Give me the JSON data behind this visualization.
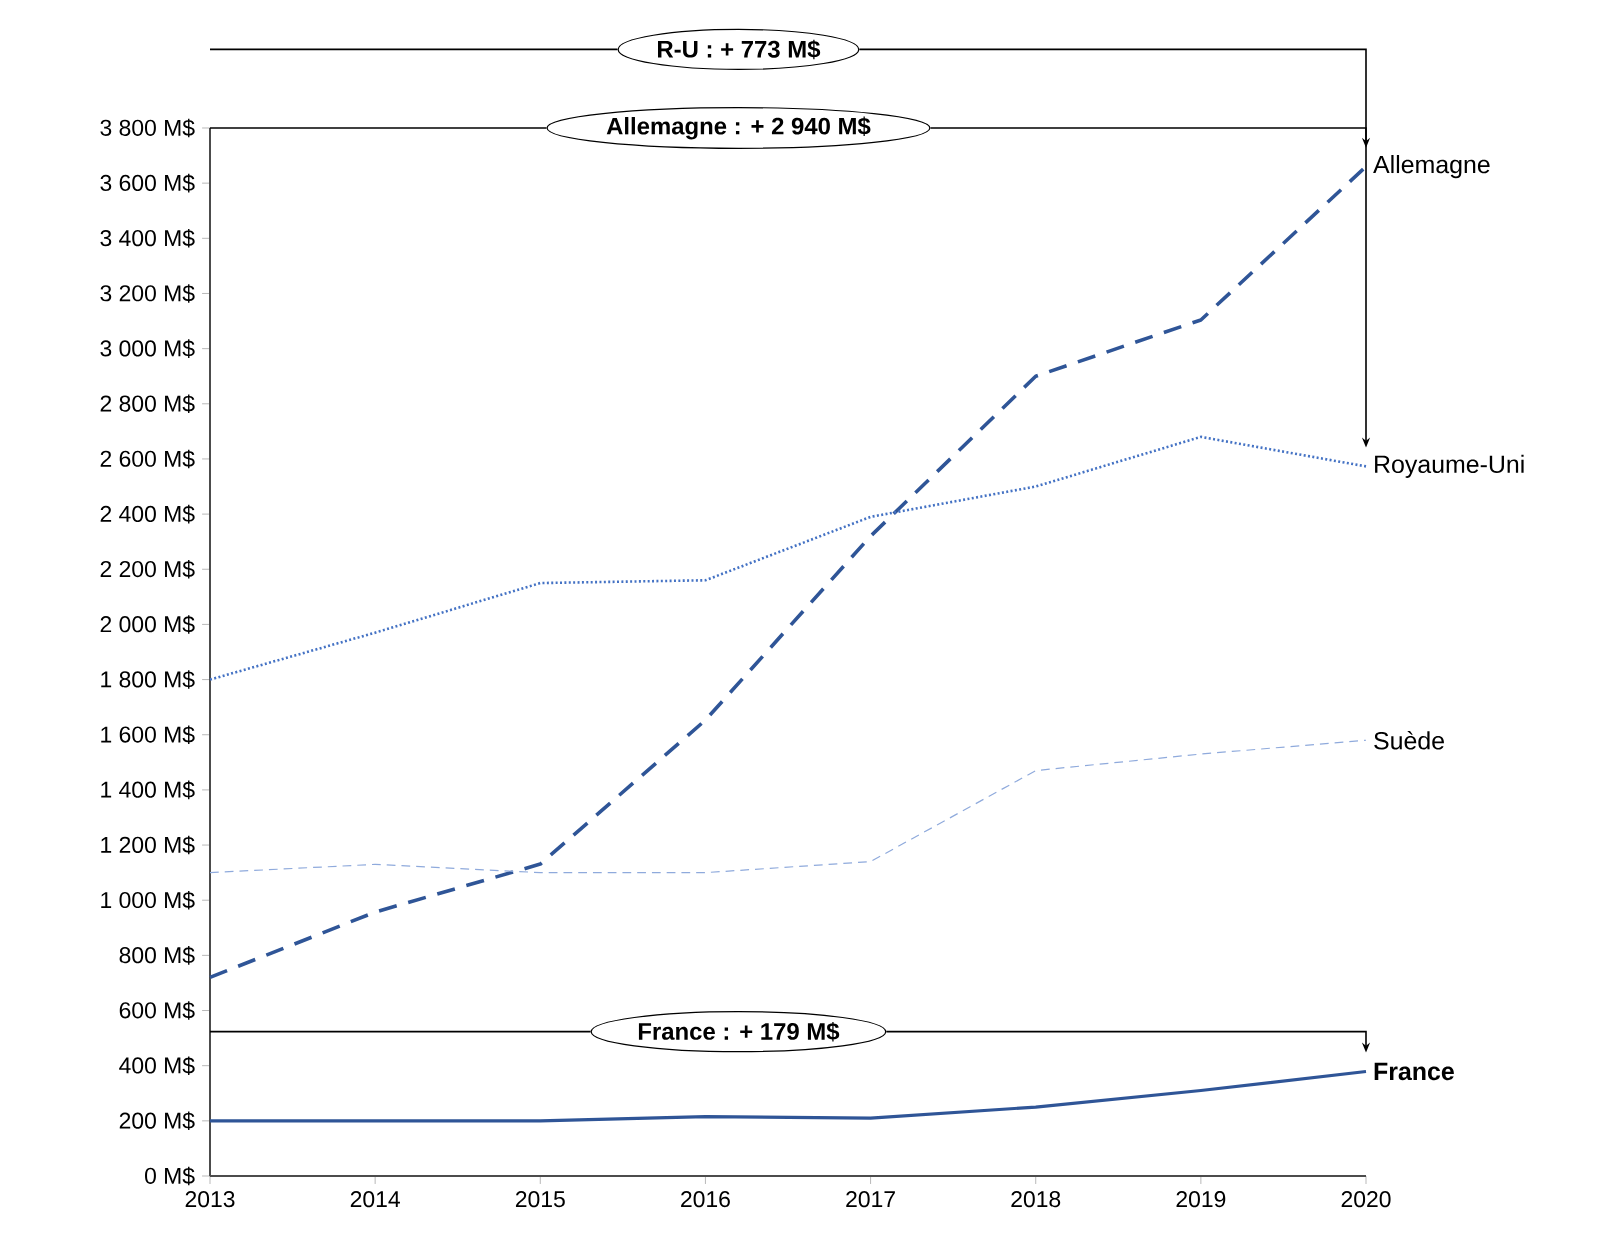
{
  "chart_data": {
    "type": "line",
    "x": [
      2013,
      2014,
      2015,
      2016,
      2017,
      2018,
      2019,
      2020
    ],
    "series": [
      {
        "name": "Allemagne",
        "color": "#2f5597",
        "line_style": "dashed",
        "values": [
          720,
          957,
          1131,
          1653,
          2320,
          2900,
          3104,
          3660
        ]
      },
      {
        "name": "Royaume-Uni",
        "color": "#4472c4",
        "line_style": "dotted",
        "values": [
          1800,
          1970,
          2150,
          2160,
          2390,
          2500,
          2680,
          2573
        ]
      },
      {
        "name": "Suède",
        "color": "#8faadc",
        "line_style": "dashed",
        "values": [
          1100,
          1130,
          1100,
          1100,
          1140,
          1470,
          1530,
          1580
        ]
      },
      {
        "name": "**France**",
        "color": "#2f5597",
        "line_style": "solid",
        "values": [
          200,
          200,
          200,
          215,
          210,
          250,
          310,
          379
        ]
      }
    ],
    "xlim": [
      2013,
      2020
    ],
    "xticks": [
      2013,
      2014,
      2015,
      2016,
      2017,
      2018,
      2019,
      2020
    ],
    "ylim": [
      0,
      3800
    ],
    "yticks": [
      {
        "value": 0,
        "label": "0 M$"
      },
      {
        "value": 200,
        "label": "200 M$"
      },
      {
        "value": 400,
        "label": "400 M$"
      },
      {
        "value": 600,
        "label": "600 M$"
      },
      {
        "value": 800,
        "label": "800 M$"
      },
      {
        "value": 1000,
        "label": "1 000 M$"
      },
      {
        "value": 1200,
        "label": "1 200 M$"
      },
      {
        "value": 1400,
        "label": "1 400 M$"
      },
      {
        "value": 1600,
        "label": "1 600 M$"
      },
      {
        "value": 1800,
        "label": "1 800 M$"
      },
      {
        "value": 2000,
        "label": "2 000 M$"
      },
      {
        "value": 2200,
        "label": "2 200 M$"
      },
      {
        "value": 2400,
        "label": "2 400 M$"
      },
      {
        "value": 2600,
        "label": "2 600 M$"
      },
      {
        "value": 2800,
        "label": "2 800 M$"
      },
      {
        "value": 3000,
        "label": "3 000 M$"
      },
      {
        "value": 3200,
        "label": "3 200 M$"
      },
      {
        "value": 3400,
        "label": "3 400 M$"
      },
      {
        "value": 3600,
        "label": "3 600 M$"
      },
      {
        "value": 3800,
        "label": "3 800 M$"
      }
    ],
    "annotations": [
      "R-U : + 773 M$",
      "Allemagne : + 2 940 M$",
      "France : + 179 M$"
    ],
    "grid": false,
    "legend": false,
    "marker": "none"
  }
}
